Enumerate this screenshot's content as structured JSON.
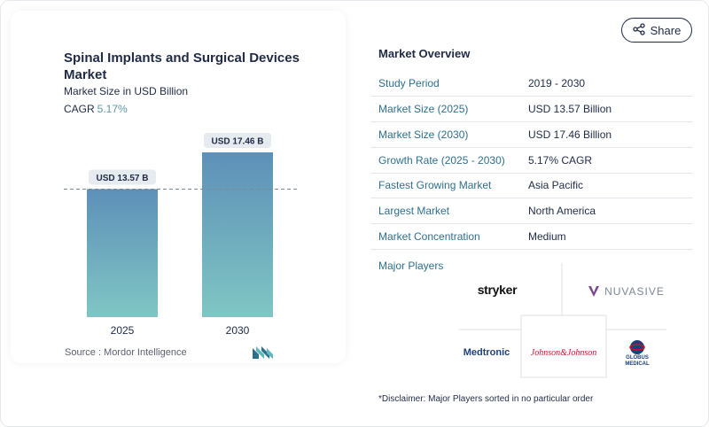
{
  "share": {
    "label": "Share",
    "icon": "share-icon"
  },
  "chart_data": {
    "type": "bar",
    "title": "Spinal Implants and Surgical Devices Market",
    "subtitle": "Market Size in USD Billion",
    "cagr_label": "CAGR",
    "cagr_value": "5.17%",
    "categories": [
      "2025",
      "2030"
    ],
    "values": [
      13.57,
      17.46
    ],
    "data_labels": [
      "USD 13.57 B",
      "USD 17.46 B"
    ],
    "ylim": [
      0,
      17.46
    ],
    "reference_line": "dashed at 2025 value",
    "bar_color_top": "#5d90b8",
    "bar_color_bottom": "#80c6c4"
  },
  "source": {
    "label": "Source :",
    "value": "Mordor Intelligence"
  },
  "market_overview": {
    "title": "Market Overview",
    "rows": [
      {
        "label": "Study Period",
        "value": "2019 - 2030"
      },
      {
        "label": "Market Size (2025)",
        "value": "USD 13.57 Billion"
      },
      {
        "label": "Market Size (2030)",
        "value": "USD 17.46 Billion"
      },
      {
        "label": "Growth Rate (2025 - 2030)",
        "value": "5.17% CAGR"
      },
      {
        "label": "Fastest Growing Market",
        "value": "Asia Pacific"
      },
      {
        "label": "Largest Market",
        "value": "North America"
      },
      {
        "label": "Market Concentration",
        "value": "Medium"
      }
    ]
  },
  "players": {
    "label": "Major Players",
    "logos": [
      "stryker",
      "NUVASIVE",
      "Medtronic",
      "Johnson&Johnson",
      "GLOBUS MEDICAL"
    ]
  },
  "disclaimer": "*Disclaimer: Major Players sorted in no particular order",
  "colors": {
    "accent": "#2e6f8c",
    "navy": "#1f2a44",
    "cagr": "#5b9aa8"
  }
}
